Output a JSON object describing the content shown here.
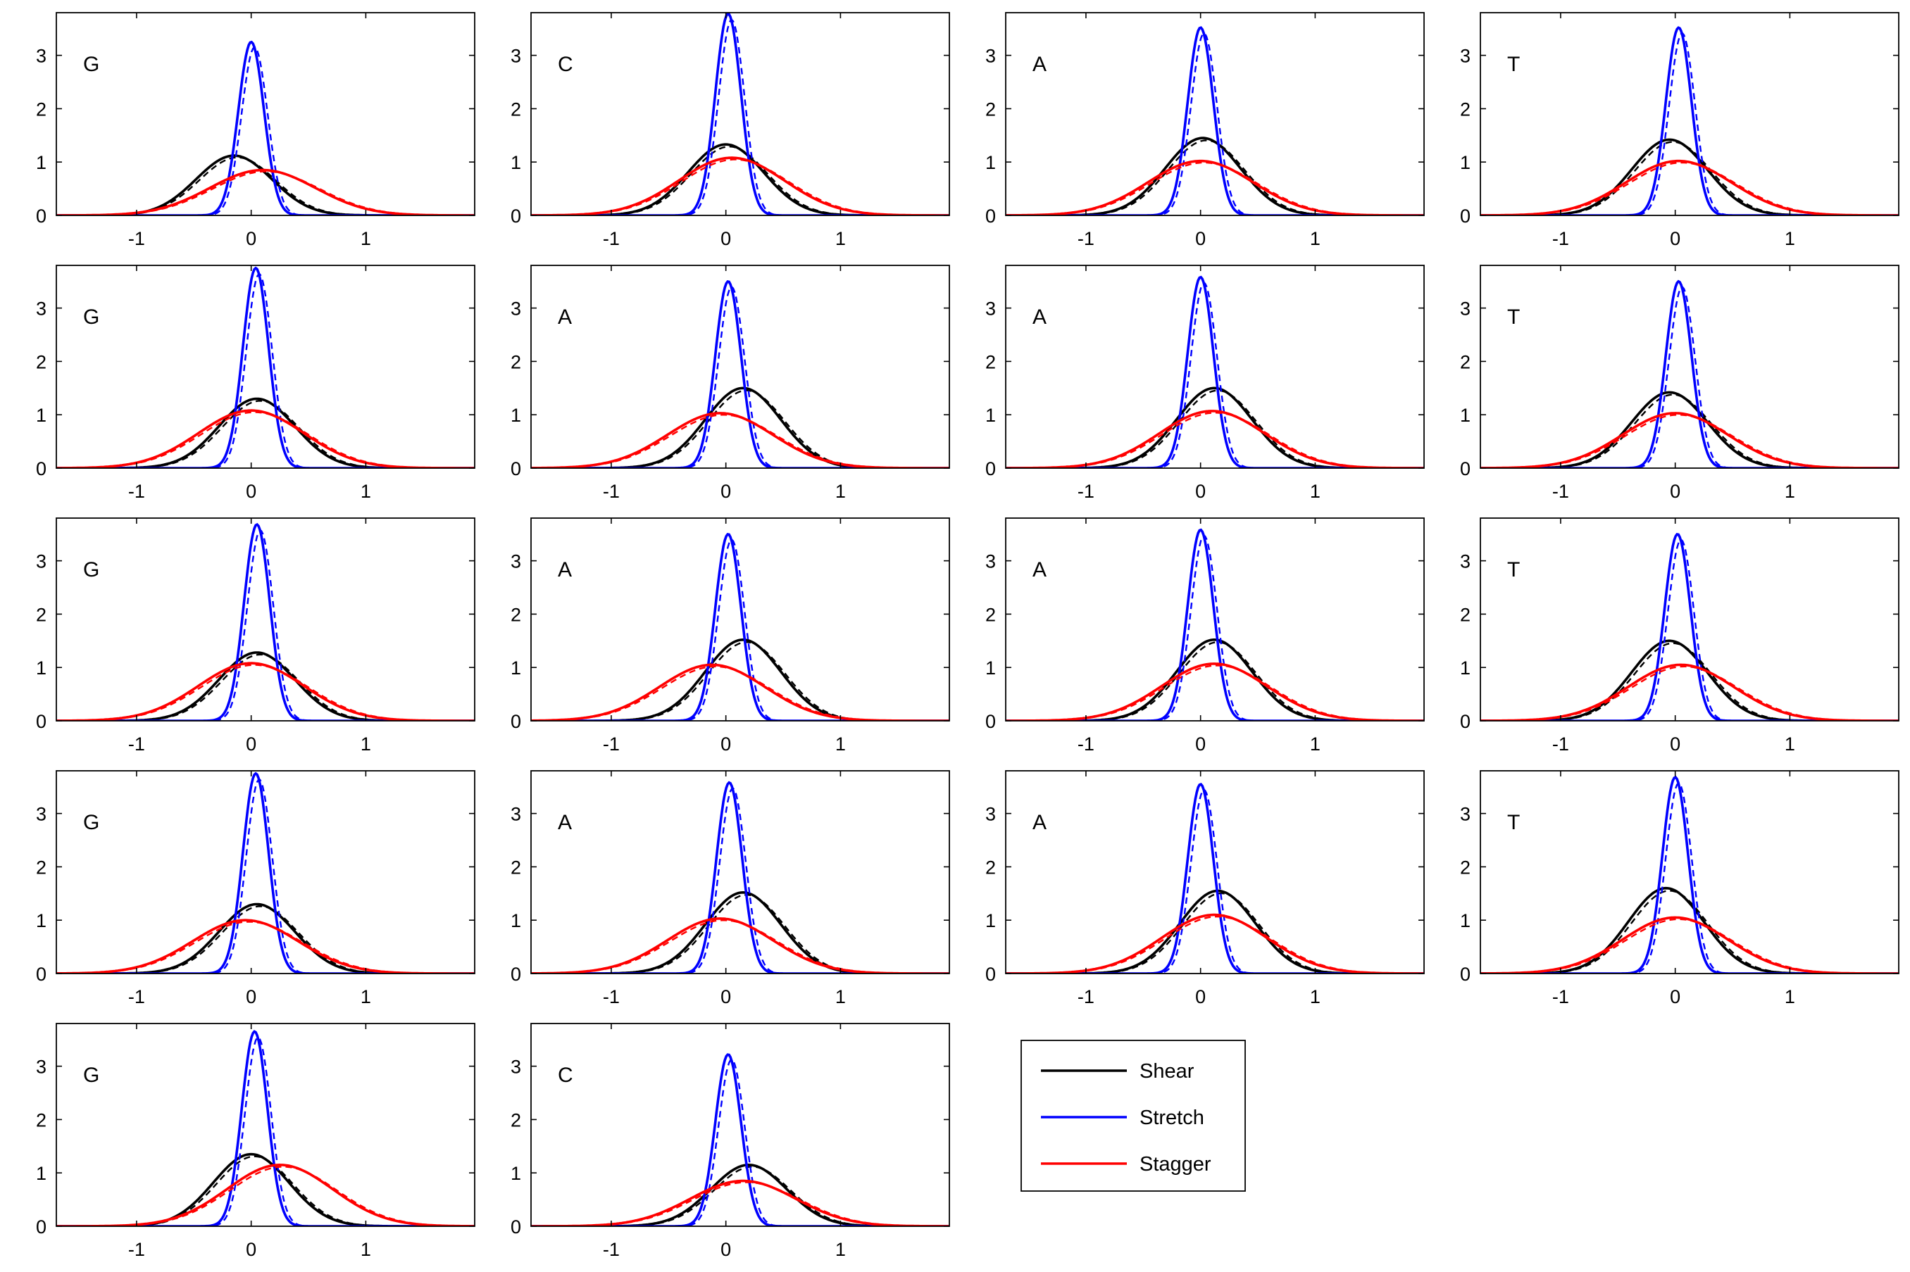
{
  "colors": {
    "shear": "#000000",
    "stretch": "#0000ff",
    "stagger": "#ff0000"
  },
  "legend": {
    "placement": "below-right",
    "entries": [
      {
        "name": "Shear",
        "color": "#000000"
      },
      {
        "name": "Stretch",
        "color": "#0000ff"
      },
      {
        "name": "Stagger",
        "color": "#ff0000"
      }
    ]
  },
  "chart_data": [
    {
      "type": "line",
      "label": "G",
      "row": 0,
      "col": 0,
      "xlim": [
        -1.7,
        1.95
      ],
      "ylim": [
        0,
        3.8
      ],
      "xticks": [
        -1,
        0,
        1
      ],
      "yticks": [
        0,
        1,
        2,
        3
      ],
      "series": [
        {
          "name": "Shear",
          "curve": "gaussian",
          "mean": -0.15,
          "peak": 1.12
        },
        {
          "name": "Stretch",
          "curve": "gaussian",
          "mean": 0.0,
          "peak": 3.25
        },
        {
          "name": "Stagger",
          "curve": "gaussian",
          "mean": 0.1,
          "peak": 0.85
        }
      ]
    },
    {
      "type": "line",
      "label": "C",
      "row": 0,
      "col": 1,
      "xlim": [
        -1.7,
        1.95
      ],
      "ylim": [
        0,
        3.8
      ],
      "xticks": [
        -1,
        0,
        1
      ],
      "yticks": [
        0,
        1,
        2,
        3
      ],
      "series": [
        {
          "name": "Shear",
          "curve": "gaussian",
          "mean": 0.0,
          "peak": 1.33
        },
        {
          "name": "Stretch",
          "curve": "gaussian",
          "mean": 0.02,
          "peak": 3.78
        },
        {
          "name": "Stagger",
          "curve": "gaussian",
          "mean": 0.05,
          "peak": 1.08
        }
      ]
    },
    {
      "type": "line",
      "label": "A",
      "row": 0,
      "col": 2,
      "xlim": [
        -1.7,
        1.95
      ],
      "ylim": [
        0,
        3.8
      ],
      "xticks": [
        -1,
        0,
        1
      ],
      "yticks": [
        0,
        1,
        2,
        3
      ],
      "series": [
        {
          "name": "Shear",
          "curve": "gaussian",
          "mean": 0.02,
          "peak": 1.45
        },
        {
          "name": "Stretch",
          "curve": "gaussian",
          "mean": 0.0,
          "peak": 3.52
        },
        {
          "name": "Stagger",
          "curve": "gaussian",
          "mean": 0.0,
          "peak": 1.02
        }
      ]
    },
    {
      "type": "line",
      "label": "T",
      "row": 0,
      "col": 3,
      "xlim": [
        -1.7,
        1.95
      ],
      "ylim": [
        0,
        3.8
      ],
      "xticks": [
        -1,
        0,
        1
      ],
      "yticks": [
        0,
        1,
        2,
        3
      ],
      "series": [
        {
          "name": "Shear",
          "curve": "gaussian",
          "mean": -0.05,
          "peak": 1.42
        },
        {
          "name": "Stretch",
          "curve": "gaussian",
          "mean": 0.03,
          "peak": 3.52
        },
        {
          "name": "Stagger",
          "curve": "gaussian",
          "mean": 0.03,
          "peak": 1.02
        }
      ]
    },
    {
      "type": "line",
      "label": "G",
      "row": 1,
      "col": 0,
      "xlim": [
        -1.7,
        1.95
      ],
      "ylim": [
        0,
        3.8
      ],
      "xticks": [
        -1,
        0,
        1
      ],
      "yticks": [
        0,
        1,
        2,
        3
      ],
      "series": [
        {
          "name": "Shear",
          "curve": "gaussian",
          "mean": 0.05,
          "peak": 1.3
        },
        {
          "name": "Stretch",
          "curve": "gaussian",
          "mean": 0.04,
          "peak": 3.75
        },
        {
          "name": "Stagger",
          "curve": "gaussian",
          "mean": 0.0,
          "peak": 1.08
        }
      ]
    },
    {
      "type": "line",
      "label": "A",
      "row": 1,
      "col": 1,
      "xlim": [
        -1.7,
        1.95
      ],
      "ylim": [
        0,
        3.8
      ],
      "xticks": [
        -1,
        0,
        1
      ],
      "yticks": [
        0,
        1,
        2,
        3
      ],
      "series": [
        {
          "name": "Shear",
          "curve": "gaussian",
          "mean": 0.15,
          "peak": 1.5
        },
        {
          "name": "Stretch",
          "curve": "gaussian",
          "mean": 0.02,
          "peak": 3.5
        },
        {
          "name": "Stagger",
          "curve": "gaussian",
          "mean": -0.05,
          "peak": 1.03
        }
      ]
    },
    {
      "type": "line",
      "label": "A",
      "row": 1,
      "col": 2,
      "xlim": [
        -1.7,
        1.95
      ],
      "ylim": [
        0,
        3.8
      ],
      "xticks": [
        -1,
        0,
        1
      ],
      "yticks": [
        0,
        1,
        2,
        3
      ],
      "series": [
        {
          "name": "Shear",
          "curve": "gaussian",
          "mean": 0.12,
          "peak": 1.5
        },
        {
          "name": "Stretch",
          "curve": "gaussian",
          "mean": 0.0,
          "peak": 3.58
        },
        {
          "name": "Stagger",
          "curve": "gaussian",
          "mean": 0.1,
          "peak": 1.07
        }
      ]
    },
    {
      "type": "line",
      "label": "T",
      "row": 1,
      "col": 3,
      "xlim": [
        -1.7,
        1.95
      ],
      "ylim": [
        0,
        3.8
      ],
      "xticks": [
        -1,
        0,
        1
      ],
      "yticks": [
        0,
        1,
        2,
        3
      ],
      "series": [
        {
          "name": "Shear",
          "curve": "gaussian",
          "mean": -0.05,
          "peak": 1.42
        },
        {
          "name": "Stretch",
          "curve": "gaussian",
          "mean": 0.03,
          "peak": 3.5
        },
        {
          "name": "Stagger",
          "curve": "gaussian",
          "mean": 0.0,
          "peak": 1.03
        }
      ]
    },
    {
      "type": "line",
      "label": "G",
      "row": 2,
      "col": 0,
      "xlim": [
        -1.7,
        1.95
      ],
      "ylim": [
        0,
        3.8
      ],
      "xticks": [
        -1,
        0,
        1
      ],
      "yticks": [
        0,
        1,
        2,
        3
      ],
      "series": [
        {
          "name": "Shear",
          "curve": "gaussian",
          "mean": 0.05,
          "peak": 1.28
        },
        {
          "name": "Stretch",
          "curve": "gaussian",
          "mean": 0.05,
          "peak": 3.68
        },
        {
          "name": "Stagger",
          "curve": "gaussian",
          "mean": 0.0,
          "peak": 1.08
        }
      ]
    },
    {
      "type": "line",
      "label": "A",
      "row": 2,
      "col": 1,
      "xlim": [
        -1.7,
        1.95
      ],
      "ylim": [
        0,
        3.8
      ],
      "xticks": [
        -1,
        0,
        1
      ],
      "yticks": [
        0,
        1,
        2,
        3
      ],
      "series": [
        {
          "name": "Shear",
          "curve": "gaussian",
          "mean": 0.15,
          "peak": 1.52
        },
        {
          "name": "Stretch",
          "curve": "gaussian",
          "mean": 0.02,
          "peak": 3.5
        },
        {
          "name": "Stagger",
          "curve": "gaussian",
          "mean": -0.12,
          "peak": 1.05
        }
      ]
    },
    {
      "type": "line",
      "label": "A",
      "row": 2,
      "col": 2,
      "xlim": [
        -1.7,
        1.95
      ],
      "ylim": [
        0,
        3.8
      ],
      "xticks": [
        -1,
        0,
        1
      ],
      "yticks": [
        0,
        1,
        2,
        3
      ],
      "series": [
        {
          "name": "Shear",
          "curve": "gaussian",
          "mean": 0.12,
          "peak": 1.52
        },
        {
          "name": "Stretch",
          "curve": "gaussian",
          "mean": 0.0,
          "peak": 3.58
        },
        {
          "name": "Stagger",
          "curve": "gaussian",
          "mean": 0.12,
          "peak": 1.07
        }
      ]
    },
    {
      "type": "line",
      "label": "T",
      "row": 2,
      "col": 3,
      "xlim": [
        -1.7,
        1.95
      ],
      "ylim": [
        0,
        3.8
      ],
      "xticks": [
        -1,
        0,
        1
      ],
      "yticks": [
        0,
        1,
        2,
        3
      ],
      "series": [
        {
          "name": "Shear",
          "curve": "gaussian",
          "mean": -0.05,
          "peak": 1.5
        },
        {
          "name": "Stretch",
          "curve": "gaussian",
          "mean": 0.02,
          "peak": 3.5
        },
        {
          "name": "Stagger",
          "curve": "gaussian",
          "mean": 0.05,
          "peak": 1.05
        }
      ]
    },
    {
      "type": "line",
      "label": "G",
      "row": 3,
      "col": 0,
      "xlim": [
        -1.7,
        1.95
      ],
      "ylim": [
        0,
        3.8
      ],
      "xticks": [
        -1,
        0,
        1
      ],
      "yticks": [
        0,
        1,
        2,
        3
      ],
      "series": [
        {
          "name": "Shear",
          "curve": "gaussian",
          "mean": 0.05,
          "peak": 1.3
        },
        {
          "name": "Stretch",
          "curve": "gaussian",
          "mean": 0.04,
          "peak": 3.75
        },
        {
          "name": "Stagger",
          "curve": "gaussian",
          "mean": -0.05,
          "peak": 1.0
        }
      ]
    },
    {
      "type": "line",
      "label": "A",
      "row": 3,
      "col": 1,
      "xlim": [
        -1.7,
        1.95
      ],
      "ylim": [
        0,
        3.8
      ],
      "xticks": [
        -1,
        0,
        1
      ],
      "yticks": [
        0,
        1,
        2,
        3
      ],
      "series": [
        {
          "name": "Shear",
          "curve": "gaussian",
          "mean": 0.15,
          "peak": 1.52
        },
        {
          "name": "Stretch",
          "curve": "gaussian",
          "mean": 0.03,
          "peak": 3.58
        },
        {
          "name": "Stagger",
          "curve": "gaussian",
          "mean": -0.05,
          "peak": 1.03
        }
      ]
    },
    {
      "type": "line",
      "label": "A",
      "row": 3,
      "col": 2,
      "xlim": [
        -1.7,
        1.95
      ],
      "ylim": [
        0,
        3.8
      ],
      "xticks": [
        -1,
        0,
        1
      ],
      "yticks": [
        0,
        1,
        2,
        3
      ],
      "series": [
        {
          "name": "Shear",
          "curve": "gaussian",
          "mean": 0.15,
          "peak": 1.55
        },
        {
          "name": "Stretch",
          "curve": "gaussian",
          "mean": 0.0,
          "peak": 3.55
        },
        {
          "name": "Stagger",
          "curve": "gaussian",
          "mean": 0.12,
          "peak": 1.1
        }
      ]
    },
    {
      "type": "line",
      "label": "T",
      "row": 3,
      "col": 3,
      "xlim": [
        -1.7,
        1.95
      ],
      "ylim": [
        0,
        3.8
      ],
      "xticks": [
        -1,
        0,
        1
      ],
      "yticks": [
        0,
        1,
        2,
        3
      ],
      "series": [
        {
          "name": "Shear",
          "curve": "gaussian",
          "mean": -0.08,
          "peak": 1.6
        },
        {
          "name": "Stretch",
          "curve": "gaussian",
          "mean": 0.0,
          "peak": 3.68
        },
        {
          "name": "Stagger",
          "curve": "gaussian",
          "mean": 0.0,
          "peak": 1.05
        }
      ]
    },
    {
      "type": "line",
      "label": "G",
      "row": 4,
      "col": 0,
      "xlim": [
        -1.7,
        1.95
      ],
      "ylim": [
        0,
        3.8
      ],
      "xticks": [
        -1,
        0,
        1
      ],
      "yticks": [
        0,
        1,
        2,
        3
      ],
      "series": [
        {
          "name": "Shear",
          "curve": "gaussian",
          "mean": 0.0,
          "peak": 1.35
        },
        {
          "name": "Stretch",
          "curve": "gaussian",
          "mean": 0.03,
          "peak": 3.65
        },
        {
          "name": "Stagger",
          "curve": "gaussian",
          "mean": 0.25,
          "peak": 1.15
        }
      ]
    },
    {
      "type": "line",
      "label": "C",
      "row": 4,
      "col": 1,
      "xlim": [
        -1.7,
        1.95
      ],
      "ylim": [
        0,
        3.8
      ],
      "xticks": [
        -1,
        0,
        1
      ],
      "yticks": [
        0,
        1,
        2,
        3
      ],
      "series": [
        {
          "name": "Shear",
          "curve": "gaussian",
          "mean": 0.2,
          "peak": 1.15
        },
        {
          "name": "Stretch",
          "curve": "gaussian",
          "mean": 0.02,
          "peak": 3.22
        },
        {
          "name": "Stagger",
          "curve": "gaussian",
          "mean": 0.15,
          "peak": 0.85
        }
      ]
    }
  ]
}
